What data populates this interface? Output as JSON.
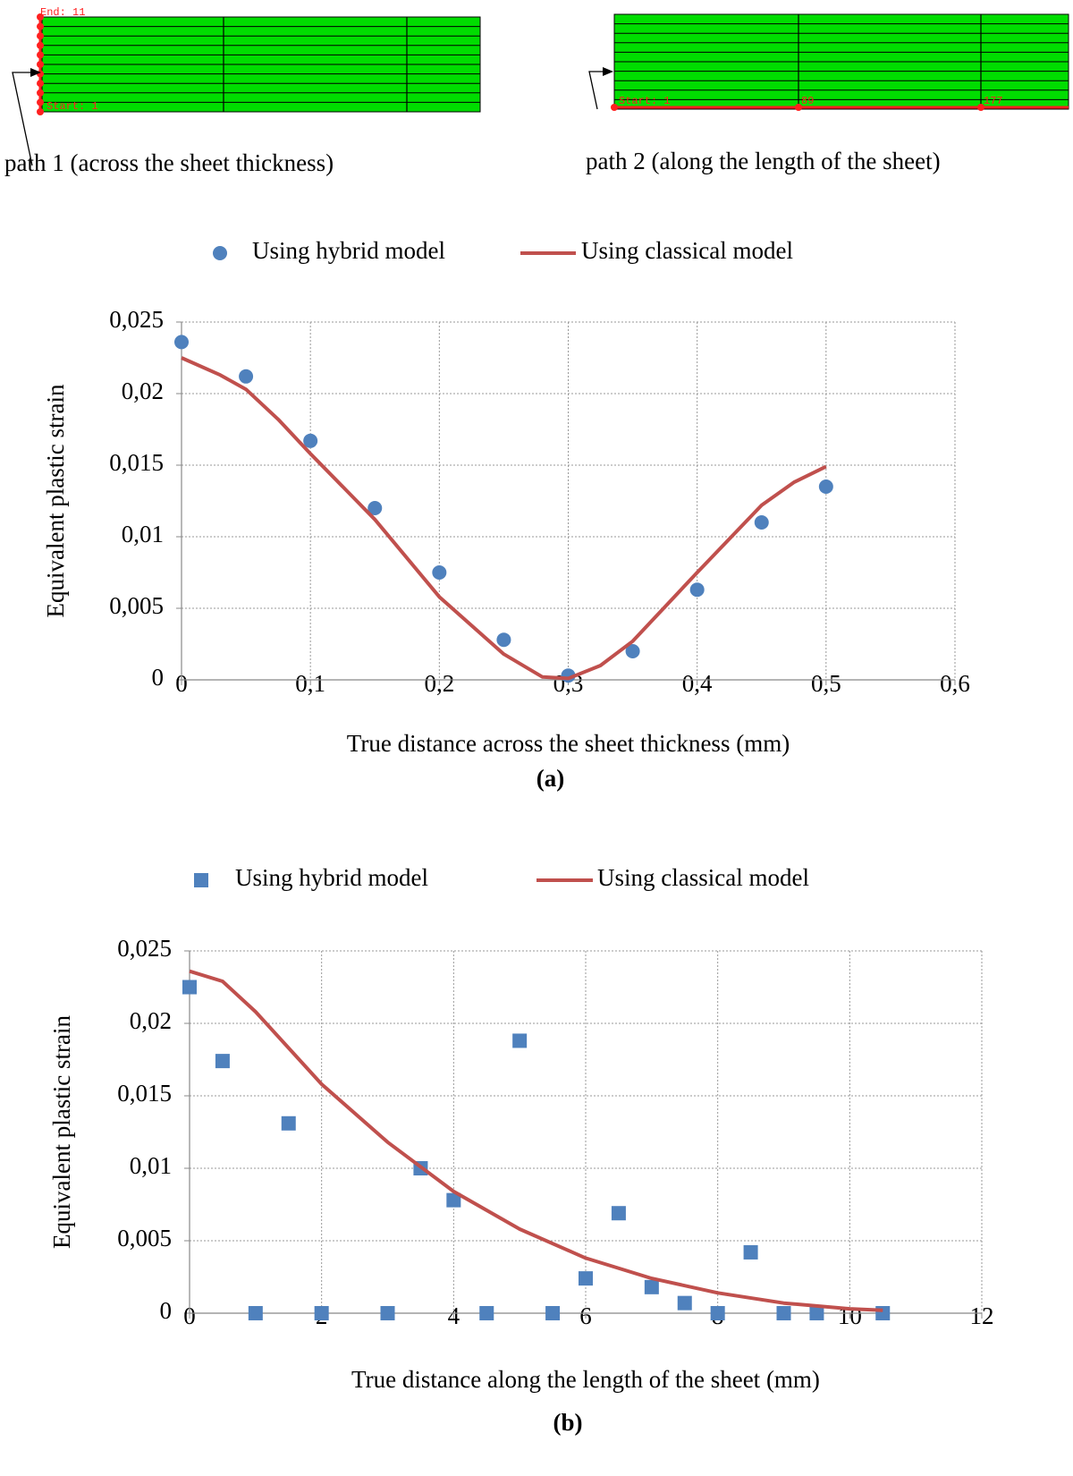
{
  "diagrams": [
    {
      "label": "path 1 (across the sheet thickness)",
      "end_label": "End: 11",
      "start_label": "Start: 1"
    },
    {
      "label": "path 2 (along the length of the sheet)",
      "start_label": "Start: 1",
      "node_labels": [
        "89",
        "177"
      ]
    }
  ],
  "chart_data": [
    {
      "type": "scatter",
      "caption": "(a)",
      "x_label": "True distance across the sheet thickness (mm)",
      "y_label": "Equivalent plastic strain",
      "xlim": [
        0,
        0.6
      ],
      "ylim": [
        0,
        0.025
      ],
      "xticks": [
        0,
        {
          "value": 0.1,
          "label": "0,1"
        },
        {
          "value": 0.2,
          "label": "0,2"
        },
        {
          "value": 0.3,
          "label": "0,3"
        },
        {
          "value": 0.4,
          "label": "0,4"
        },
        {
          "value": 0.5,
          "label": "0,5"
        },
        {
          "value": 0.6,
          "label": "0,6"
        }
      ],
      "yticks": [
        0,
        {
          "value": 0.005,
          "label": "0,005"
        },
        {
          "value": 0.01,
          "label": "0,01"
        },
        {
          "value": 0.015,
          "label": "0,015"
        },
        {
          "value": 0.02,
          "label": "0,02"
        },
        {
          "value": 0.025,
          "label": "0,025"
        }
      ],
      "grid": true,
      "series": [
        {
          "name": "Using hybrid model",
          "color": "#4f81bd",
          "mode": "markers",
          "marker": "circle",
          "x": [
            0,
            0.05,
            0.1,
            0.15,
            0.2,
            0.25,
            0.3,
            0.35,
            0.4,
            0.45,
            0.5
          ],
          "values": [
            0.0236,
            0.0212,
            0.0167,
            0.012,
            0.0075,
            0.0028,
            0.0003,
            0.002,
            0.0063,
            0.011,
            0.0135
          ]
        },
        {
          "name": "Using classical model",
          "color": "#c0504d",
          "mode": "line",
          "x": [
            0,
            0.03,
            0.05,
            0.075,
            0.1,
            0.15,
            0.2,
            0.25,
            0.28,
            0.3,
            0.325,
            0.35,
            0.4,
            0.45,
            0.475,
            0.5
          ],
          "values": [
            0.0225,
            0.0213,
            0.0203,
            0.0182,
            0.0158,
            0.0112,
            0.0058,
            0.0018,
            0.0002,
            0.0001,
            0.001,
            0.0027,
            0.0075,
            0.0122,
            0.0138,
            0.0149
          ]
        }
      ]
    },
    {
      "type": "scatter",
      "caption": "(b)",
      "x_label": "True distance along the length of the sheet (mm)",
      "y_label": "Equivalent plastic strain",
      "xlim": [
        0,
        12
      ],
      "ylim": [
        0,
        0.025
      ],
      "xticks": [
        0,
        2,
        4,
        6,
        8,
        10,
        12
      ],
      "yticks": [
        0,
        {
          "value": 0.005,
          "label": "0,005"
        },
        {
          "value": 0.01,
          "label": "0,01"
        },
        {
          "value": 0.015,
          "label": "0,015"
        },
        {
          "value": 0.02,
          "label": "0,02"
        },
        {
          "value": 0.025,
          "label": "0,025"
        }
      ],
      "grid": true,
      "series": [
        {
          "name": "Using hybrid model",
          "color": "#4f81bd",
          "mode": "markers",
          "marker": "square",
          "x": [
            0,
            0.5,
            1,
            1.5,
            2,
            3,
            3.5,
            4,
            4.5,
            5,
            5.5,
            6,
            6.5,
            7,
            7.5,
            8,
            8.5,
            9,
            9.5,
            10.5
          ],
          "values": [
            0.0225,
            0.0174,
            0,
            0.0131,
            0,
            0,
            0.01,
            0.0078,
            0,
            0.0188,
            0,
            0.0024,
            0.0069,
            0.0018,
            0.0007,
            0,
            0.0042,
            0,
            0,
            0
          ]
        },
        {
          "name": "Using classical model",
          "color": "#c0504d",
          "mode": "line",
          "x": [
            0,
            0.5,
            1,
            2,
            3,
            4,
            5,
            6,
            7,
            8,
            9,
            10,
            10.5
          ],
          "values": [
            0.0236,
            0.0229,
            0.0208,
            0.0158,
            0.0118,
            0.0084,
            0.0058,
            0.0038,
            0.0024,
            0.0014,
            0.0007,
            0.0003,
            0.0002
          ]
        }
      ]
    }
  ]
}
